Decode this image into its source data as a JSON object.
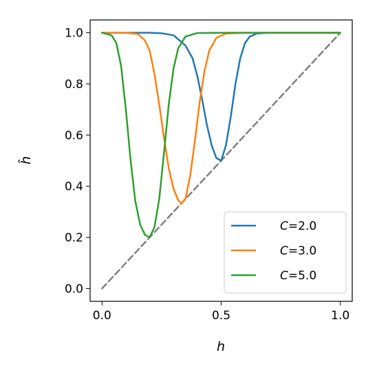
{
  "chart_data": {
    "type": "line",
    "xlabel": "h",
    "ylabel": "ĥ",
    "xlim": [
      -0.05,
      1.05
    ],
    "ylim": [
      -0.05,
      1.05
    ],
    "xticks": [
      0.0,
      0.5,
      1.0
    ],
    "xtick_labels": [
      "0.0",
      "0.5",
      "1.0"
    ],
    "yticks": [
      0.0,
      0.2,
      0.4,
      0.6,
      0.8,
      1.0
    ],
    "ytick_labels": [
      "0.0",
      "0.2",
      "0.4",
      "0.6",
      "0.8",
      "1.0"
    ],
    "grid": false,
    "legend_position": "lower-right",
    "series": [
      {
        "name": "C=2.0",
        "legend_prefix": "C",
        "legend_value": "=2.0",
        "color": "#1f77b4",
        "x": [
          0.0,
          0.1,
          0.2,
          0.25,
          0.3,
          0.35,
          0.38,
          0.4,
          0.42,
          0.44,
          0.46,
          0.48,
          0.5,
          0.52,
          0.54,
          0.56,
          0.58,
          0.6,
          0.62,
          0.65,
          0.7,
          0.8,
          0.9,
          1.0
        ],
        "y": [
          1.0,
          1.0,
          1.0,
          0.998,
          0.99,
          0.95,
          0.9,
          0.83,
          0.74,
          0.64,
          0.56,
          0.51,
          0.5,
          0.56,
          0.67,
          0.8,
          0.9,
          0.96,
          0.985,
          0.997,
          1.0,
          1.0,
          1.0,
          1.0
        ]
      },
      {
        "name": "C=3.0",
        "legend_prefix": "C",
        "legend_value": "=3.0",
        "color": "#ff7f0e",
        "x": [
          0.0,
          0.1,
          0.15,
          0.18,
          0.2,
          0.22,
          0.24,
          0.26,
          0.28,
          0.3,
          0.32,
          0.333,
          0.35,
          0.37,
          0.39,
          0.41,
          0.43,
          0.45,
          0.48,
          0.52,
          0.6,
          0.8,
          1.0
        ],
        "y": [
          1.0,
          1.0,
          0.995,
          0.97,
          0.93,
          0.84,
          0.72,
          0.59,
          0.47,
          0.39,
          0.345,
          0.333,
          0.35,
          0.44,
          0.58,
          0.73,
          0.85,
          0.93,
          0.98,
          0.997,
          1.0,
          1.0,
          1.0
        ]
      },
      {
        "name": "C=5.0",
        "legend_prefix": "C",
        "legend_value": "=5.0",
        "color": "#2ca02c",
        "x": [
          0.0,
          0.04,
          0.06,
          0.08,
          0.1,
          0.12,
          0.14,
          0.16,
          0.18,
          0.2,
          0.22,
          0.24,
          0.26,
          0.28,
          0.3,
          0.32,
          0.35,
          0.4,
          0.5,
          1.0
        ],
        "y": [
          1.0,
          0.99,
          0.96,
          0.87,
          0.7,
          0.5,
          0.34,
          0.25,
          0.21,
          0.2,
          0.24,
          0.35,
          0.53,
          0.72,
          0.86,
          0.94,
          0.985,
          0.999,
          1.0,
          1.0
        ]
      },
      {
        "name": "",
        "color": "#808080",
        "dashed": true,
        "x": [
          0.0,
          1.0
        ],
        "y": [
          0.0,
          1.0
        ]
      }
    ]
  }
}
